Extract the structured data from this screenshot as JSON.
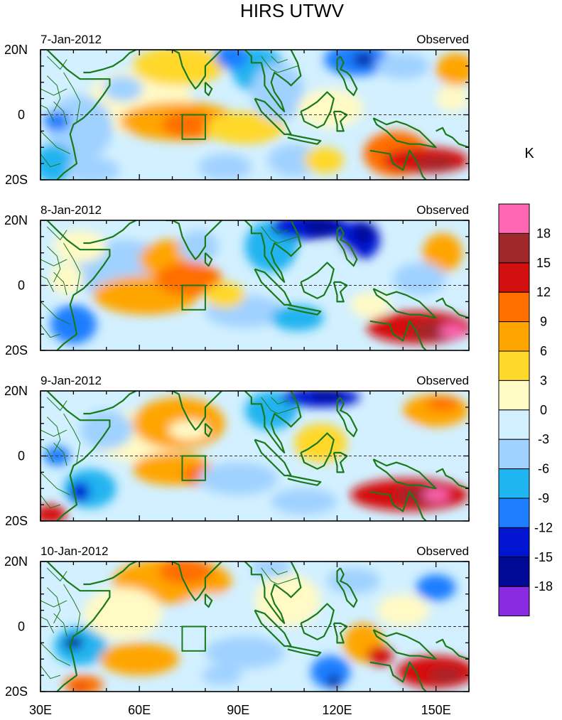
{
  "figure": {
    "title": "HIRS UTWV",
    "colorbar_unit": "K",
    "lat_labels": [
      "20N",
      "0",
      "20S"
    ],
    "lon_labels": [
      "30E",
      "60E",
      "90E",
      "120E",
      "150E"
    ],
    "colorbar_levels": [
      "18",
      "15",
      "12",
      "9",
      "6",
      "3",
      "0",
      "-3",
      "-6",
      "-9",
      "-12",
      "-15",
      "-18"
    ],
    "colorbar_colors": [
      "#ff66b4",
      "#a0282a",
      "#d40f0f",
      "#ff6e00",
      "#ffa500",
      "#ffd82c",
      "#fffac6",
      "#d2f0ff",
      "#a0d2ff",
      "#20b4f0",
      "#1e7eff",
      "#0014d2",
      "#000a96",
      "#8a2be2"
    ]
  },
  "panels": [
    {
      "date": "7-Jan-2012",
      "label": "Observed"
    },
    {
      "date": "8-Jan-2012",
      "label": "Observed"
    },
    {
      "date": "9-Jan-2012",
      "label": "Observed"
    },
    {
      "date": "10-Jan-2012",
      "label": "Observed"
    }
  ]
}
